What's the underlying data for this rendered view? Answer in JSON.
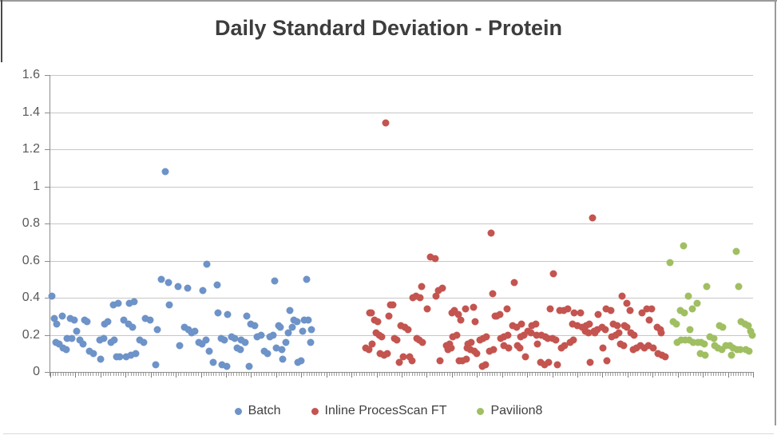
{
  "title": "Daily Standard Deviation - Protein",
  "chart_data": {
    "type": "scatter",
    "title": "Daily Standard Deviation - Protein",
    "xlabel": "",
    "ylabel": "",
    "ylim": [
      0,
      1.6
    ],
    "ytick_labels": [
      "1.6",
      "1.4",
      "1.2",
      "1",
      "0.8",
      "0.6",
      "0.4",
      "0.2",
      "0"
    ],
    "ytick_values": [
      1.6,
      1.4,
      1.2,
      1.0,
      0.8,
      0.6,
      0.4,
      0.2,
      0
    ],
    "grid": "horizontal",
    "x_axis_labels_visible": false,
    "x_category_tick_count": 280,
    "legend_position": "bottom",
    "series": [
      {
        "name": "Batch",
        "color": "#6d93c8",
        "points": [
          [
            0.2,
            0.41
          ],
          [
            0.6,
            0.29
          ],
          [
            0.8,
            0.16
          ],
          [
            0.9,
            0.26
          ],
          [
            1.3,
            0.15
          ],
          [
            1.7,
            0.3
          ],
          [
            1.8,
            0.13
          ],
          [
            2.3,
            0.12
          ],
          [
            2.4,
            0.18
          ],
          [
            2.8,
            0.29
          ],
          [
            3.1,
            0.18
          ],
          [
            3.4,
            0.28
          ],
          [
            3.8,
            0.22
          ],
          [
            4.2,
            0.17
          ],
          [
            4.7,
            0.15
          ],
          [
            4.9,
            0.28
          ],
          [
            5.2,
            0.27
          ],
          [
            5.6,
            0.11
          ],
          [
            6.1,
            0.1
          ],
          [
            7.0,
            0.17
          ],
          [
            7.2,
            0.07
          ],
          [
            7.6,
            0.18
          ],
          [
            7.7,
            0.26
          ],
          [
            8.2,
            0.27
          ],
          [
            8.6,
            0.16
          ],
          [
            9.0,
            0.36
          ],
          [
            9.1,
            0.17
          ],
          [
            9.4,
            0.08
          ],
          [
            9.7,
            0.37
          ],
          [
            9.9,
            0.08
          ],
          [
            10.5,
            0.28
          ],
          [
            10.8,
            0.08
          ],
          [
            11.1,
            0.26
          ],
          [
            11.3,
            0.37
          ],
          [
            11.5,
            0.09
          ],
          [
            11.7,
            0.24
          ],
          [
            11.9,
            0.38
          ],
          [
            12.2,
            0.1
          ],
          [
            12.7,
            0.17
          ],
          [
            13.3,
            0.16
          ],
          [
            13.5,
            0.29
          ],
          [
            14.2,
            0.28
          ],
          [
            15.0,
            0.04
          ],
          [
            15.2,
            0.23
          ],
          [
            15.8,
            0.5
          ],
          [
            16.4,
            1.08
          ],
          [
            16.8,
            0.48
          ],
          [
            16.9,
            0.36
          ],
          [
            18.2,
            0.46
          ],
          [
            18.4,
            0.14
          ],
          [
            19.1,
            0.24
          ],
          [
            19.5,
            0.45
          ],
          [
            19.7,
            0.23
          ],
          [
            20.1,
            0.21
          ],
          [
            20.6,
            0.22
          ],
          [
            21.1,
            0.16
          ],
          [
            21.6,
            0.15
          ],
          [
            21.7,
            0.44
          ],
          [
            22.2,
            0.17
          ],
          [
            22.3,
            0.58
          ],
          [
            22.6,
            0.11
          ],
          [
            23.2,
            0.05
          ],
          [
            23.8,
            0.47
          ],
          [
            23.9,
            0.32
          ],
          [
            24.3,
            0.18
          ],
          [
            24.4,
            0.04
          ],
          [
            24.8,
            0.17
          ],
          [
            25.1,
            0.03
          ],
          [
            25.2,
            0.31
          ],
          [
            25.8,
            0.19
          ],
          [
            26.3,
            0.18
          ],
          [
            26.6,
            0.13
          ],
          [
            27.0,
            0.12
          ],
          [
            27.2,
            0.17
          ],
          [
            27.7,
            0.16
          ],
          [
            28.0,
            0.3
          ],
          [
            28.3,
            0.03
          ],
          [
            28.5,
            0.26
          ],
          [
            29.1,
            0.25
          ],
          [
            29.4,
            0.19
          ],
          [
            30.0,
            0.2
          ],
          [
            30.5,
            0.11
          ],
          [
            30.9,
            0.1
          ],
          [
            31.3,
            0.19
          ],
          [
            31.7,
            0.2
          ],
          [
            31.9,
            0.49
          ],
          [
            32.2,
            0.13
          ],
          [
            32.5,
            0.25
          ],
          [
            32.7,
            0.24
          ],
          [
            33.0,
            0.12
          ],
          [
            33.1,
            0.07
          ],
          [
            33.5,
            0.16
          ],
          [
            33.9,
            0.21
          ],
          [
            34.1,
            0.33
          ],
          [
            34.4,
            0.24
          ],
          [
            34.7,
            0.28
          ],
          [
            35.1,
            0.27
          ],
          [
            35.2,
            0.05
          ],
          [
            35.7,
            0.06
          ],
          [
            35.9,
            0.22
          ],
          [
            36.1,
            0.28
          ],
          [
            36.5,
            0.5
          ],
          [
            36.7,
            0.28
          ],
          [
            37.0,
            0.16
          ],
          [
            37.2,
            0.23
          ]
        ]
      },
      {
        "name": "Inline ProcesScan FT",
        "color": "#c4544f",
        "points": [
          [
            44.9,
            0.13
          ],
          [
            45.3,
            0.12
          ],
          [
            45.5,
            0.32
          ],
          [
            45.7,
            0.32
          ],
          [
            45.8,
            0.15
          ],
          [
            46.1,
            0.28
          ],
          [
            46.4,
            0.21
          ],
          [
            46.6,
            0.27
          ],
          [
            46.8,
            0.2
          ],
          [
            46.9,
            0.1
          ],
          [
            47.2,
            0.19
          ],
          [
            47.5,
            0.09
          ],
          [
            47.7,
            1.34
          ],
          [
            48.0,
            0.1
          ],
          [
            48.2,
            0.3
          ],
          [
            48.4,
            0.36
          ],
          [
            48.8,
            0.36
          ],
          [
            49.0,
            0.18
          ],
          [
            49.3,
            0.17
          ],
          [
            49.7,
            0.05
          ],
          [
            49.9,
            0.25
          ],
          [
            50.2,
            0.08
          ],
          [
            50.5,
            0.24
          ],
          [
            50.9,
            0.23
          ],
          [
            51.1,
            0.08
          ],
          [
            51.5,
            0.06
          ],
          [
            51.6,
            0.4
          ],
          [
            52.0,
            0.41
          ],
          [
            52.2,
            0.18
          ],
          [
            52.5,
            0.17
          ],
          [
            52.6,
            0.4
          ],
          [
            52.8,
            0.46
          ],
          [
            53.0,
            0.16
          ],
          [
            53.6,
            0.34
          ],
          [
            54.1,
            0.62
          ],
          [
            54.8,
            0.61
          ],
          [
            54.9,
            0.41
          ],
          [
            55.2,
            0.44
          ],
          [
            55.5,
            0.06
          ],
          [
            55.8,
            0.45
          ],
          [
            56.4,
            0.14
          ],
          [
            56.6,
            0.12
          ],
          [
            56.8,
            0.15
          ],
          [
            57.0,
            0.13
          ],
          [
            57.2,
            0.32
          ],
          [
            57.3,
            0.19
          ],
          [
            57.5,
            0.33
          ],
          [
            57.8,
            0.2
          ],
          [
            58.1,
            0.31
          ],
          [
            58.2,
            0.06
          ],
          [
            58.4,
            0.28
          ],
          [
            58.6,
            0.06
          ],
          [
            59.1,
            0.34
          ],
          [
            59.2,
            0.07
          ],
          [
            59.3,
            0.13
          ],
          [
            59.4,
            0.15
          ],
          [
            59.8,
            0.12
          ],
          [
            59.9,
            0.16
          ],
          [
            60.2,
            0.35
          ],
          [
            60.3,
            0.11
          ],
          [
            60.5,
            0.27
          ],
          [
            60.7,
            0.1
          ],
          [
            61.1,
            0.17
          ],
          [
            61.5,
            0.03
          ],
          [
            61.6,
            0.18
          ],
          [
            61.9,
            0.04
          ],
          [
            62.0,
            0.19
          ],
          [
            62.5,
            0.11
          ],
          [
            62.7,
            0.75
          ],
          [
            63.0,
            0.42
          ],
          [
            63.1,
            0.12
          ],
          [
            63.3,
            0.3
          ],
          [
            63.5,
            0.3
          ],
          [
            64.0,
            0.31
          ],
          [
            64.1,
            0.18
          ],
          [
            64.5,
            0.19
          ],
          [
            64.6,
            0.14
          ],
          [
            65.0,
            0.34
          ],
          [
            65.1,
            0.2
          ],
          [
            65.2,
            0.13
          ],
          [
            65.8,
            0.25
          ],
          [
            66.0,
            0.48
          ],
          [
            66.4,
            0.24
          ],
          [
            66.5,
            0.14
          ],
          [
            66.8,
            0.13
          ],
          [
            66.9,
            0.19
          ],
          [
            67.0,
            0.26
          ],
          [
            67.4,
            0.2
          ],
          [
            67.6,
            0.08
          ],
          [
            68.0,
            0.22
          ],
          [
            68.4,
            0.21
          ],
          [
            68.5,
            0.25
          ],
          [
            69.1,
            0.26
          ],
          [
            69.2,
            0.2
          ],
          [
            69.3,
            0.15
          ],
          [
            69.8,
            0.05
          ],
          [
            69.9,
            0.2
          ],
          [
            70.3,
            0.04
          ],
          [
            70.4,
            0.19
          ],
          [
            70.8,
            0.18
          ],
          [
            70.9,
            0.05
          ],
          [
            71.1,
            0.34
          ],
          [
            71.5,
            0.18
          ],
          [
            71.6,
            0.53
          ],
          [
            71.9,
            0.17
          ],
          [
            72.2,
            0.04
          ],
          [
            72.5,
            0.33
          ],
          [
            72.7,
            0.13
          ],
          [
            73.1,
            0.33
          ],
          [
            73.2,
            0.14
          ],
          [
            73.6,
            0.34
          ],
          [
            74.0,
            0.16
          ],
          [
            74.3,
            0.26
          ],
          [
            74.4,
            0.17
          ],
          [
            74.5,
            0.32
          ],
          [
            75.0,
            0.25
          ],
          [
            75.5,
            0.32
          ],
          [
            75.7,
            0.24
          ],
          [
            76.1,
            0.22
          ],
          [
            76.3,
            0.25
          ],
          [
            76.6,
            0.21
          ],
          [
            76.7,
            0.26
          ],
          [
            76.8,
            0.05
          ],
          [
            77.2,
            0.83
          ],
          [
            77.4,
            0.22
          ],
          [
            77.5,
            0.21
          ],
          [
            77.8,
            0.23
          ],
          [
            78.0,
            0.31
          ],
          [
            78.5,
            0.24
          ],
          [
            78.6,
            0.13
          ],
          [
            79.0,
            0.23
          ],
          [
            79.1,
            0.34
          ],
          [
            79.2,
            0.06
          ],
          [
            79.8,
            0.33
          ],
          [
            79.9,
            0.19
          ],
          [
            80.1,
            0.26
          ],
          [
            80.5,
            0.2
          ],
          [
            80.7,
            0.25
          ],
          [
            80.9,
            0.21
          ],
          [
            81.1,
            0.15
          ],
          [
            81.4,
            0.41
          ],
          [
            81.6,
            0.14
          ],
          [
            81.7,
            0.25
          ],
          [
            82.0,
            0.37
          ],
          [
            82.1,
            0.24
          ],
          [
            82.5,
            0.33
          ],
          [
            82.6,
            0.21
          ],
          [
            83.0,
            0.12
          ],
          [
            83.1,
            0.2
          ],
          [
            83.4,
            0.13
          ],
          [
            84.0,
            0.14
          ],
          [
            84.2,
            0.32
          ],
          [
            84.5,
            0.13
          ],
          [
            84.9,
            0.34
          ],
          [
            85.1,
            0.14
          ],
          [
            85.2,
            0.28
          ],
          [
            85.6,
            0.34
          ],
          [
            85.8,
            0.13
          ],
          [
            86.4,
            0.24
          ],
          [
            86.5,
            0.1
          ],
          [
            86.8,
            0.23
          ],
          [
            86.9,
            0.21
          ],
          [
            87.0,
            0.09
          ],
          [
            87.5,
            0.08
          ]
        ]
      },
      {
        "name": "Pavilion8",
        "color": "#a0bf62",
        "points": [
          [
            88.2,
            0.59
          ],
          [
            88.6,
            0.27
          ],
          [
            89.1,
            0.26
          ],
          [
            89.2,
            0.16
          ],
          [
            89.7,
            0.33
          ],
          [
            89.8,
            0.17
          ],
          [
            90.1,
            0.68
          ],
          [
            90.2,
            0.32
          ],
          [
            90.3,
            0.17
          ],
          [
            90.8,
            0.41
          ],
          [
            90.9,
            0.17
          ],
          [
            91.0,
            0.23
          ],
          [
            91.4,
            0.34
          ],
          [
            91.5,
            0.16
          ],
          [
            92.0,
            0.37
          ],
          [
            92.2,
            0.16
          ],
          [
            92.5,
            0.1
          ],
          [
            92.6,
            0.16
          ],
          [
            93.1,
            0.15
          ],
          [
            93.2,
            0.09
          ],
          [
            93.4,
            0.46
          ],
          [
            93.9,
            0.19
          ],
          [
            94.4,
            0.18
          ],
          [
            94.5,
            0.14
          ],
          [
            95.0,
            0.13
          ],
          [
            95.2,
            0.25
          ],
          [
            95.6,
            0.12
          ],
          [
            95.7,
            0.24
          ],
          [
            96.1,
            0.14
          ],
          [
            96.7,
            0.14
          ],
          [
            96.9,
            0.09
          ],
          [
            97.2,
            0.13
          ],
          [
            97.6,
            0.65
          ],
          [
            97.7,
            0.12
          ],
          [
            98.0,
            0.46
          ],
          [
            98.2,
            0.12
          ],
          [
            98.3,
            0.27
          ],
          [
            98.9,
            0.26
          ],
          [
            99.0,
            0.12
          ],
          [
            99.3,
            0.25
          ],
          [
            99.4,
            0.11
          ],
          [
            99.7,
            0.22
          ],
          [
            99.9,
            0.2
          ]
        ]
      }
    ]
  }
}
